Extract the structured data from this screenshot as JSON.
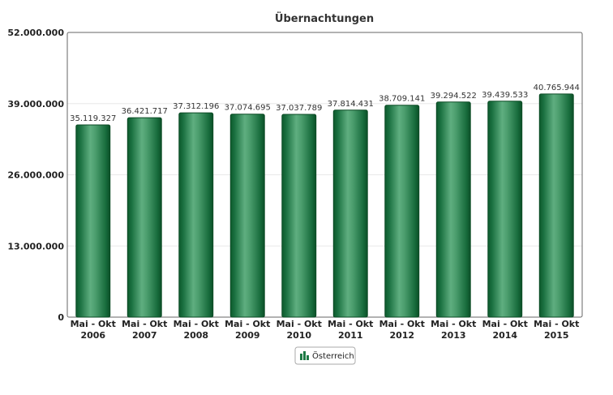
{
  "chart_data": {
    "type": "bar",
    "title": "Übernachtungen",
    "xlabel": "",
    "ylabel": "",
    "ylim": [
      0,
      52000000
    ],
    "yticks": [
      0,
      13000000,
      26000000,
      39000000,
      52000000
    ],
    "ytick_labels": [
      "0",
      "13.000.000",
      "26.000.000",
      "39.000.000",
      "52.000.000"
    ],
    "grid": true,
    "legend_position": "bottom",
    "categories": [
      [
        "Mai - Okt",
        "2006"
      ],
      [
        "Mai - Okt",
        "2007"
      ],
      [
        "Mai - Okt",
        "2008"
      ],
      [
        "Mai - Okt",
        "2009"
      ],
      [
        "Mai - Okt",
        "2010"
      ],
      [
        "Mai - Okt",
        "2011"
      ],
      [
        "Mai - Okt",
        "2012"
      ],
      [
        "Mai - Okt",
        "2013"
      ],
      [
        "Mai - Okt",
        "2014"
      ],
      [
        "Mai - Okt",
        "2015"
      ]
    ],
    "series": [
      {
        "name": "Österreich",
        "color": "#1e7a45",
        "values": [
          35119327,
          36421717,
          37312196,
          37074695,
          37037789,
          37814431,
          38709141,
          39294522,
          39439533,
          40765944
        ],
        "value_labels": [
          "35.119.327",
          "36.421.717",
          "37.312.196",
          "37.074.695",
          "37.037.789",
          "37.814.431",
          "38.709.141",
          "39.294.522",
          "39.439.533",
          "40.765.944"
        ]
      }
    ],
    "legend_icon": "bar-chart-icon"
  }
}
